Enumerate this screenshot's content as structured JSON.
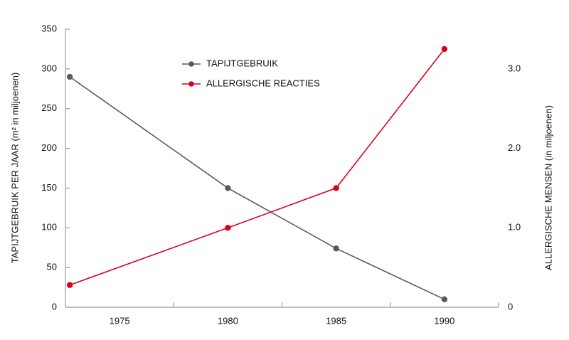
{
  "chart_data": {
    "type": "line",
    "x": [
      1972.7,
      1980,
      1985,
      1990
    ],
    "xlim": [
      1972.5,
      1992.5
    ],
    "xticks": [
      1975,
      1980,
      1985,
      1990
    ],
    "ylim": [
      0,
      350
    ],
    "yticks": [
      0,
      50,
      100,
      150,
      200,
      250,
      300,
      350
    ],
    "y2lim": [
      0,
      3.5
    ],
    "y2ticks": [
      0,
      {
        "value": 1,
        "label": "1.0"
      },
      {
        "value": 2,
        "label": "2.0"
      },
      {
        "value": 3,
        "label": "3.0"
      }
    ],
    "ylabel": "TAPIJTGEBRUIK PER JAAR (m² in miljoenen)",
    "y2label": "ALLERGISCHE MENSEN (in miljoenen)",
    "series": [
      {
        "name": "TAPIJTGEBRUIK",
        "color": "#5a5a5a",
        "values": [
          290,
          150,
          74,
          10
        ]
      },
      {
        "name": "ALLERGISCHE REACTIES",
        "color": "#d9001b",
        "axis": "y2",
        "values": [
          0.28,
          1.0,
          1.5,
          3.25
        ]
      }
    ]
  }
}
